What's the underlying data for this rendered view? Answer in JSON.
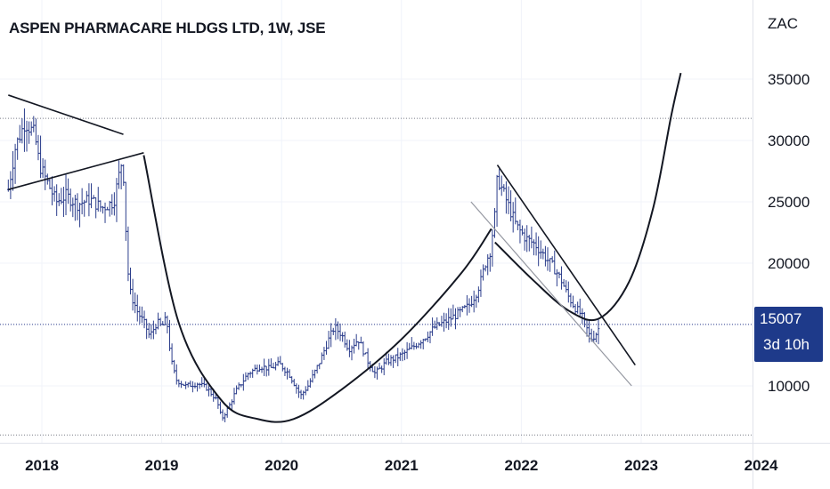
{
  "header": {
    "title": "ASPEN PHARMACARE HLDGS LTD, 1W, JSE",
    "currency": "ZAC"
  },
  "price_badge": {
    "price": "15007",
    "countdown": "3d 10h"
  },
  "colors": {
    "candle": "#2c3e8c",
    "drawing": "#131722",
    "last_price_line": "#2c3e8c",
    "badge_bg": "#1e3a8a"
  },
  "chart_data": {
    "type": "candlestick",
    "title": "ASPEN PHARMACARE HLDGS LTD, 1W, JSE",
    "y_ticks": [
      10000,
      15000,
      20000,
      25000,
      30000,
      35000
    ],
    "y_tick_labels": [
      "10000",
      "15000",
      "20000",
      "25000",
      "30000",
      "35000"
    ],
    "x_ticks": [
      2018,
      2019,
      2020,
      2021,
      2022,
      2023,
      2024
    ],
    "x_tick_labels": [
      "2018",
      "2019",
      "2020",
      "2021",
      "2022",
      "2023",
      "2024"
    ],
    "ylim": [
      4500,
      38500
    ],
    "xlim": [
      2017.72,
      2024.02
    ],
    "last_price": 15007,
    "horizontal_levels": [
      31800,
      6000
    ],
    "price_path": [
      [
        2017.72,
        26000
      ],
      [
        2017.78,
        29500
      ],
      [
        2017.86,
        31500
      ],
      [
        2017.94,
        30500
      ],
      [
        2017.98,
        28000
      ],
      [
        2018.05,
        26500
      ],
      [
        2018.12,
        25000
      ],
      [
        2018.2,
        25500
      ],
      [
        2018.3,
        24800
      ],
      [
        2018.4,
        25200
      ],
      [
        2018.5,
        24500
      ],
      [
        2018.6,
        25000
      ],
      [
        2018.64,
        27000
      ],
      [
        2018.67,
        28500
      ],
      [
        2018.69,
        26000
      ],
      [
        2018.71,
        20000
      ],
      [
        2018.74,
        17500
      ],
      [
        2018.8,
        16000
      ],
      [
        2018.86,
        15000
      ],
      [
        2018.9,
        14000
      ],
      [
        2018.96,
        15200
      ],
      [
        2019.0,
        14800
      ],
      [
        2019.04,
        15500
      ],
      [
        2019.08,
        12000
      ],
      [
        2019.12,
        10500
      ],
      [
        2019.2,
        10000
      ],
      [
        2019.3,
        10200
      ],
      [
        2019.38,
        9800
      ],
      [
        2019.46,
        8800
      ],
      [
        2019.5,
        7300
      ],
      [
        2019.56,
        8300
      ],
      [
        2019.62,
        9600
      ],
      [
        2019.72,
        11000
      ],
      [
        2019.82,
        11600
      ],
      [
        2019.9,
        11400
      ],
      [
        2019.98,
        11800
      ],
      [
        2020.06,
        11000
      ],
      [
        2020.16,
        9200
      ],
      [
        2020.22,
        10000
      ],
      [
        2020.32,
        12000
      ],
      [
        2020.38,
        13500
      ],
      [
        2020.44,
        14800
      ],
      [
        2020.5,
        14200
      ],
      [
        2020.56,
        13000
      ],
      [
        2020.64,
        13800
      ],
      [
        2020.72,
        12000
      ],
      [
        2020.78,
        11000
      ],
      [
        2020.88,
        12000
      ],
      [
        2021.0,
        12500
      ],
      [
        2021.1,
        13200
      ],
      [
        2021.2,
        14000
      ],
      [
        2021.28,
        14800
      ],
      [
        2021.36,
        15200
      ],
      [
        2021.46,
        15800
      ],
      [
        2021.56,
        16500
      ],
      [
        2021.62,
        17500
      ],
      [
        2021.66,
        18500
      ],
      [
        2021.7,
        20000
      ],
      [
        2021.74,
        21000
      ],
      [
        2021.78,
        24000
      ],
      [
        2021.8,
        27000
      ],
      [
        2021.84,
        26000
      ],
      [
        2021.9,
        24500
      ],
      [
        2021.96,
        23000
      ],
      [
        2022.04,
        22000
      ],
      [
        2022.12,
        21500
      ],
      [
        2022.2,
        20500
      ],
      [
        2022.28,
        19500
      ],
      [
        2022.34,
        18500
      ],
      [
        2022.38,
        17500
      ],
      [
        2022.44,
        16500
      ],
      [
        2022.5,
        15800
      ],
      [
        2022.54,
        14800
      ],
      [
        2022.58,
        13800
      ],
      [
        2022.62,
        14200
      ],
      [
        2022.66,
        15000
      ]
    ],
    "drawings": [
      {
        "type": "line",
        "name": "upper-trendline-2017",
        "points": [
          [
            2017.72,
            33700
          ],
          [
            2018.68,
            30500
          ]
        ]
      },
      {
        "type": "line",
        "name": "lower-trendline-2017",
        "points": [
          [
            2017.72,
            26000
          ],
          [
            2018.85,
            29000
          ]
        ]
      },
      {
        "type": "curve",
        "name": "cup-curve",
        "points": [
          [
            2018.85,
            28800
          ],
          [
            2019.14,
            15200
          ],
          [
            2019.5,
            8800
          ],
          [
            2019.8,
            7300
          ],
          [
            2020.1,
            7300
          ],
          [
            2020.5,
            9700
          ],
          [
            2021.0,
            13800
          ],
          [
            2021.5,
            19200
          ],
          [
            2021.75,
            22800
          ]
        ]
      },
      {
        "type": "curve",
        "name": "handle-curve",
        "points": [
          [
            2021.78,
            21700
          ],
          [
            2022.1,
            18600
          ],
          [
            2022.4,
            16100
          ],
          [
            2022.65,
            15500
          ],
          [
            2022.9,
            18500
          ],
          [
            2023.1,
            24500
          ],
          [
            2023.25,
            32000
          ],
          [
            2023.33,
            35500
          ]
        ]
      },
      {
        "type": "line",
        "name": "channel-upper-line",
        "points": [
          [
            2021.8,
            28000
          ],
          [
            2022.95,
            11700
          ]
        ]
      },
      {
        "type": "line",
        "name": "channel-lower-line",
        "points": [
          [
            2021.58,
            25000
          ],
          [
            2022.92,
            10000
          ]
        ]
      }
    ]
  }
}
